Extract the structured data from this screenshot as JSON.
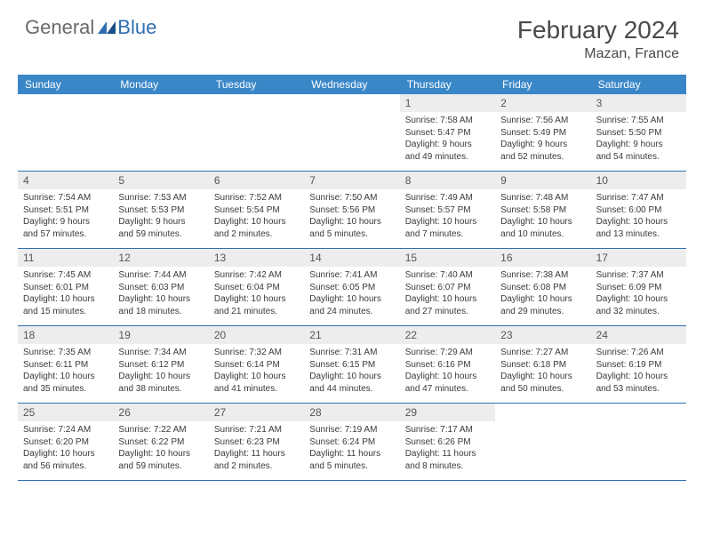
{
  "logo": {
    "general": "General",
    "blue": "Blue"
  },
  "title": "February 2024",
  "location": "Mazan, France",
  "colors": {
    "headerBar": "#3a87c8",
    "rowBorder": "#2f6fb0",
    "dayNumBg": "#ededed",
    "logoGray": "#6a6a6a",
    "logoBlue": "#2f6fb0"
  },
  "dayNames": [
    "Sunday",
    "Monday",
    "Tuesday",
    "Wednesday",
    "Thursday",
    "Friday",
    "Saturday"
  ],
  "weeks": [
    [
      {
        "blank": true
      },
      {
        "blank": true
      },
      {
        "blank": true
      },
      {
        "blank": true
      },
      {
        "n": "1",
        "sunrise": "Sunrise: 7:58 AM",
        "sunset": "Sunset: 5:47 PM",
        "d1": "Daylight: 9 hours",
        "d2": "and 49 minutes."
      },
      {
        "n": "2",
        "sunrise": "Sunrise: 7:56 AM",
        "sunset": "Sunset: 5:49 PM",
        "d1": "Daylight: 9 hours",
        "d2": "and 52 minutes."
      },
      {
        "n": "3",
        "sunrise": "Sunrise: 7:55 AM",
        "sunset": "Sunset: 5:50 PM",
        "d1": "Daylight: 9 hours",
        "d2": "and 54 minutes."
      }
    ],
    [
      {
        "n": "4",
        "sunrise": "Sunrise: 7:54 AM",
        "sunset": "Sunset: 5:51 PM",
        "d1": "Daylight: 9 hours",
        "d2": "and 57 minutes."
      },
      {
        "n": "5",
        "sunrise": "Sunrise: 7:53 AM",
        "sunset": "Sunset: 5:53 PM",
        "d1": "Daylight: 9 hours",
        "d2": "and 59 minutes."
      },
      {
        "n": "6",
        "sunrise": "Sunrise: 7:52 AM",
        "sunset": "Sunset: 5:54 PM",
        "d1": "Daylight: 10 hours",
        "d2": "and 2 minutes."
      },
      {
        "n": "7",
        "sunrise": "Sunrise: 7:50 AM",
        "sunset": "Sunset: 5:56 PM",
        "d1": "Daylight: 10 hours",
        "d2": "and 5 minutes."
      },
      {
        "n": "8",
        "sunrise": "Sunrise: 7:49 AM",
        "sunset": "Sunset: 5:57 PM",
        "d1": "Daylight: 10 hours",
        "d2": "and 7 minutes."
      },
      {
        "n": "9",
        "sunrise": "Sunrise: 7:48 AM",
        "sunset": "Sunset: 5:58 PM",
        "d1": "Daylight: 10 hours",
        "d2": "and 10 minutes."
      },
      {
        "n": "10",
        "sunrise": "Sunrise: 7:47 AM",
        "sunset": "Sunset: 6:00 PM",
        "d1": "Daylight: 10 hours",
        "d2": "and 13 minutes."
      }
    ],
    [
      {
        "n": "11",
        "sunrise": "Sunrise: 7:45 AM",
        "sunset": "Sunset: 6:01 PM",
        "d1": "Daylight: 10 hours",
        "d2": "and 15 minutes."
      },
      {
        "n": "12",
        "sunrise": "Sunrise: 7:44 AM",
        "sunset": "Sunset: 6:03 PM",
        "d1": "Daylight: 10 hours",
        "d2": "and 18 minutes."
      },
      {
        "n": "13",
        "sunrise": "Sunrise: 7:42 AM",
        "sunset": "Sunset: 6:04 PM",
        "d1": "Daylight: 10 hours",
        "d2": "and 21 minutes."
      },
      {
        "n": "14",
        "sunrise": "Sunrise: 7:41 AM",
        "sunset": "Sunset: 6:05 PM",
        "d1": "Daylight: 10 hours",
        "d2": "and 24 minutes."
      },
      {
        "n": "15",
        "sunrise": "Sunrise: 7:40 AM",
        "sunset": "Sunset: 6:07 PM",
        "d1": "Daylight: 10 hours",
        "d2": "and 27 minutes."
      },
      {
        "n": "16",
        "sunrise": "Sunrise: 7:38 AM",
        "sunset": "Sunset: 6:08 PM",
        "d1": "Daylight: 10 hours",
        "d2": "and 29 minutes."
      },
      {
        "n": "17",
        "sunrise": "Sunrise: 7:37 AM",
        "sunset": "Sunset: 6:09 PM",
        "d1": "Daylight: 10 hours",
        "d2": "and 32 minutes."
      }
    ],
    [
      {
        "n": "18",
        "sunrise": "Sunrise: 7:35 AM",
        "sunset": "Sunset: 6:11 PM",
        "d1": "Daylight: 10 hours",
        "d2": "and 35 minutes."
      },
      {
        "n": "19",
        "sunrise": "Sunrise: 7:34 AM",
        "sunset": "Sunset: 6:12 PM",
        "d1": "Daylight: 10 hours",
        "d2": "and 38 minutes."
      },
      {
        "n": "20",
        "sunrise": "Sunrise: 7:32 AM",
        "sunset": "Sunset: 6:14 PM",
        "d1": "Daylight: 10 hours",
        "d2": "and 41 minutes."
      },
      {
        "n": "21",
        "sunrise": "Sunrise: 7:31 AM",
        "sunset": "Sunset: 6:15 PM",
        "d1": "Daylight: 10 hours",
        "d2": "and 44 minutes."
      },
      {
        "n": "22",
        "sunrise": "Sunrise: 7:29 AM",
        "sunset": "Sunset: 6:16 PM",
        "d1": "Daylight: 10 hours",
        "d2": "and 47 minutes."
      },
      {
        "n": "23",
        "sunrise": "Sunrise: 7:27 AM",
        "sunset": "Sunset: 6:18 PM",
        "d1": "Daylight: 10 hours",
        "d2": "and 50 minutes."
      },
      {
        "n": "24",
        "sunrise": "Sunrise: 7:26 AM",
        "sunset": "Sunset: 6:19 PM",
        "d1": "Daylight: 10 hours",
        "d2": "and 53 minutes."
      }
    ],
    [
      {
        "n": "25",
        "sunrise": "Sunrise: 7:24 AM",
        "sunset": "Sunset: 6:20 PM",
        "d1": "Daylight: 10 hours",
        "d2": "and 56 minutes."
      },
      {
        "n": "26",
        "sunrise": "Sunrise: 7:22 AM",
        "sunset": "Sunset: 6:22 PM",
        "d1": "Daylight: 10 hours",
        "d2": "and 59 minutes."
      },
      {
        "n": "27",
        "sunrise": "Sunrise: 7:21 AM",
        "sunset": "Sunset: 6:23 PM",
        "d1": "Daylight: 11 hours",
        "d2": "and 2 minutes."
      },
      {
        "n": "28",
        "sunrise": "Sunrise: 7:19 AM",
        "sunset": "Sunset: 6:24 PM",
        "d1": "Daylight: 11 hours",
        "d2": "and 5 minutes."
      },
      {
        "n": "29",
        "sunrise": "Sunrise: 7:17 AM",
        "sunset": "Sunset: 6:26 PM",
        "d1": "Daylight: 11 hours",
        "d2": "and 8 minutes."
      },
      {
        "blank": true
      },
      {
        "blank": true
      }
    ]
  ]
}
